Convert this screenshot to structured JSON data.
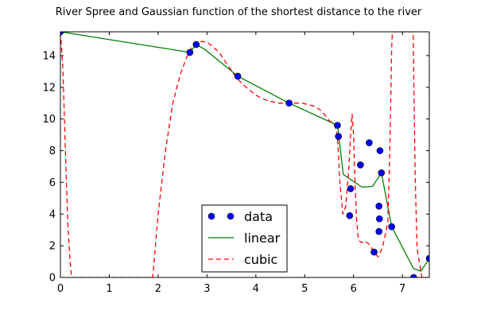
{
  "chart_data": {
    "title": "River Spree and Gaussian function of the shortest distance to the river",
    "xlabel": "",
    "ylabel": "",
    "xlim": [
      0,
      7.55
    ],
    "ylim": [
      0,
      15.5
    ],
    "xticks": [
      0,
      1,
      2,
      3,
      4,
      5,
      6,
      7
    ],
    "yticks": [
      0,
      2,
      4,
      6,
      8,
      10,
      12,
      14
    ],
    "grid": false,
    "legend_position": "lower center",
    "colors": {
      "data": "#0000ff",
      "linear": "#008000",
      "cubic": "#ff0000"
    },
    "series": [
      {
        "name": "data",
        "type": "scatter",
        "x": [
          0,
          2.65,
          2.78,
          3.63,
          4.68,
          5.67,
          5.69,
          5.92,
          5.94,
          6.14,
          6.32,
          6.42,
          6.52,
          6.52,
          6.53,
          6.54,
          6.57,
          6.78,
          7.23,
          7.55
        ],
        "y": [
          15.5,
          14.2,
          14.7,
          12.7,
          11.0,
          9.6,
          8.9,
          3.9,
          5.6,
          7.1,
          8.5,
          1.6,
          2.9,
          4.5,
          3.7,
          8.0,
          6.6,
          3.2,
          0.0,
          1.2
        ]
      },
      {
        "name": "linear",
        "type": "line",
        "x": [
          0,
          2.65,
          2.78,
          2.95,
          3.63,
          4.68,
          5.67,
          5.79,
          6.17,
          6.39,
          6.57,
          6.78,
          7.23,
          7.38,
          7.55
        ],
        "y": [
          15.5,
          14.2,
          14.7,
          14.4,
          12.7,
          11.0,
          9.6,
          6.5,
          5.7,
          5.75,
          6.6,
          3.2,
          0.55,
          0.4,
          1.2
        ]
      },
      {
        "name": "cubic",
        "type": "line",
        "style": "dashed",
        "x": [
          0,
          0.05,
          0.1,
          0.15,
          0.2,
          0.23,
          1.89,
          2.0,
          2.15,
          2.3,
          2.45,
          2.6,
          2.7,
          2.8,
          2.9,
          3.0,
          3.1,
          3.25,
          3.4,
          3.6,
          3.8,
          4.0,
          4.2,
          4.45,
          4.7,
          4.95,
          5.2,
          5.35,
          5.5,
          5.6,
          5.67,
          5.72,
          5.78,
          5.84,
          5.9,
          5.94,
          5.97,
          6.0,
          6.03,
          6.06,
          6.09,
          6.12,
          6.17,
          6.22,
          6.32,
          6.42,
          6.5,
          6.55,
          6.6,
          6.65,
          6.7,
          6.73,
          6.76,
          6.78,
          6.795,
          7.22,
          7.235,
          7.26,
          7.3,
          7.4,
          7.5,
          7.55
        ],
        "y": [
          15.5,
          13.2,
          8.2,
          3.5,
          0.9,
          0,
          0,
          4.0,
          8.0,
          11.0,
          12.8,
          14.0,
          14.6,
          14.8,
          14.9,
          14.85,
          14.6,
          14.2,
          13.5,
          12.6,
          12.0,
          11.5,
          11.2,
          11.0,
          11.0,
          11.0,
          10.8,
          10.5,
          9.9,
          9.7,
          9.0,
          6.0,
          4.0,
          4.5,
          6.8,
          9.0,
          10.3,
          9.0,
          6.0,
          3.8,
          2.6,
          2.3,
          2.2,
          2.3,
          2.1,
          1.6,
          1.3,
          1.6,
          2.0,
          2.7,
          3.5,
          6.5,
          11.0,
          14.5,
          15.5,
          15.5,
          12.0,
          6.5,
          1.8,
          0,
          0,
          0
        ]
      }
    ]
  }
}
